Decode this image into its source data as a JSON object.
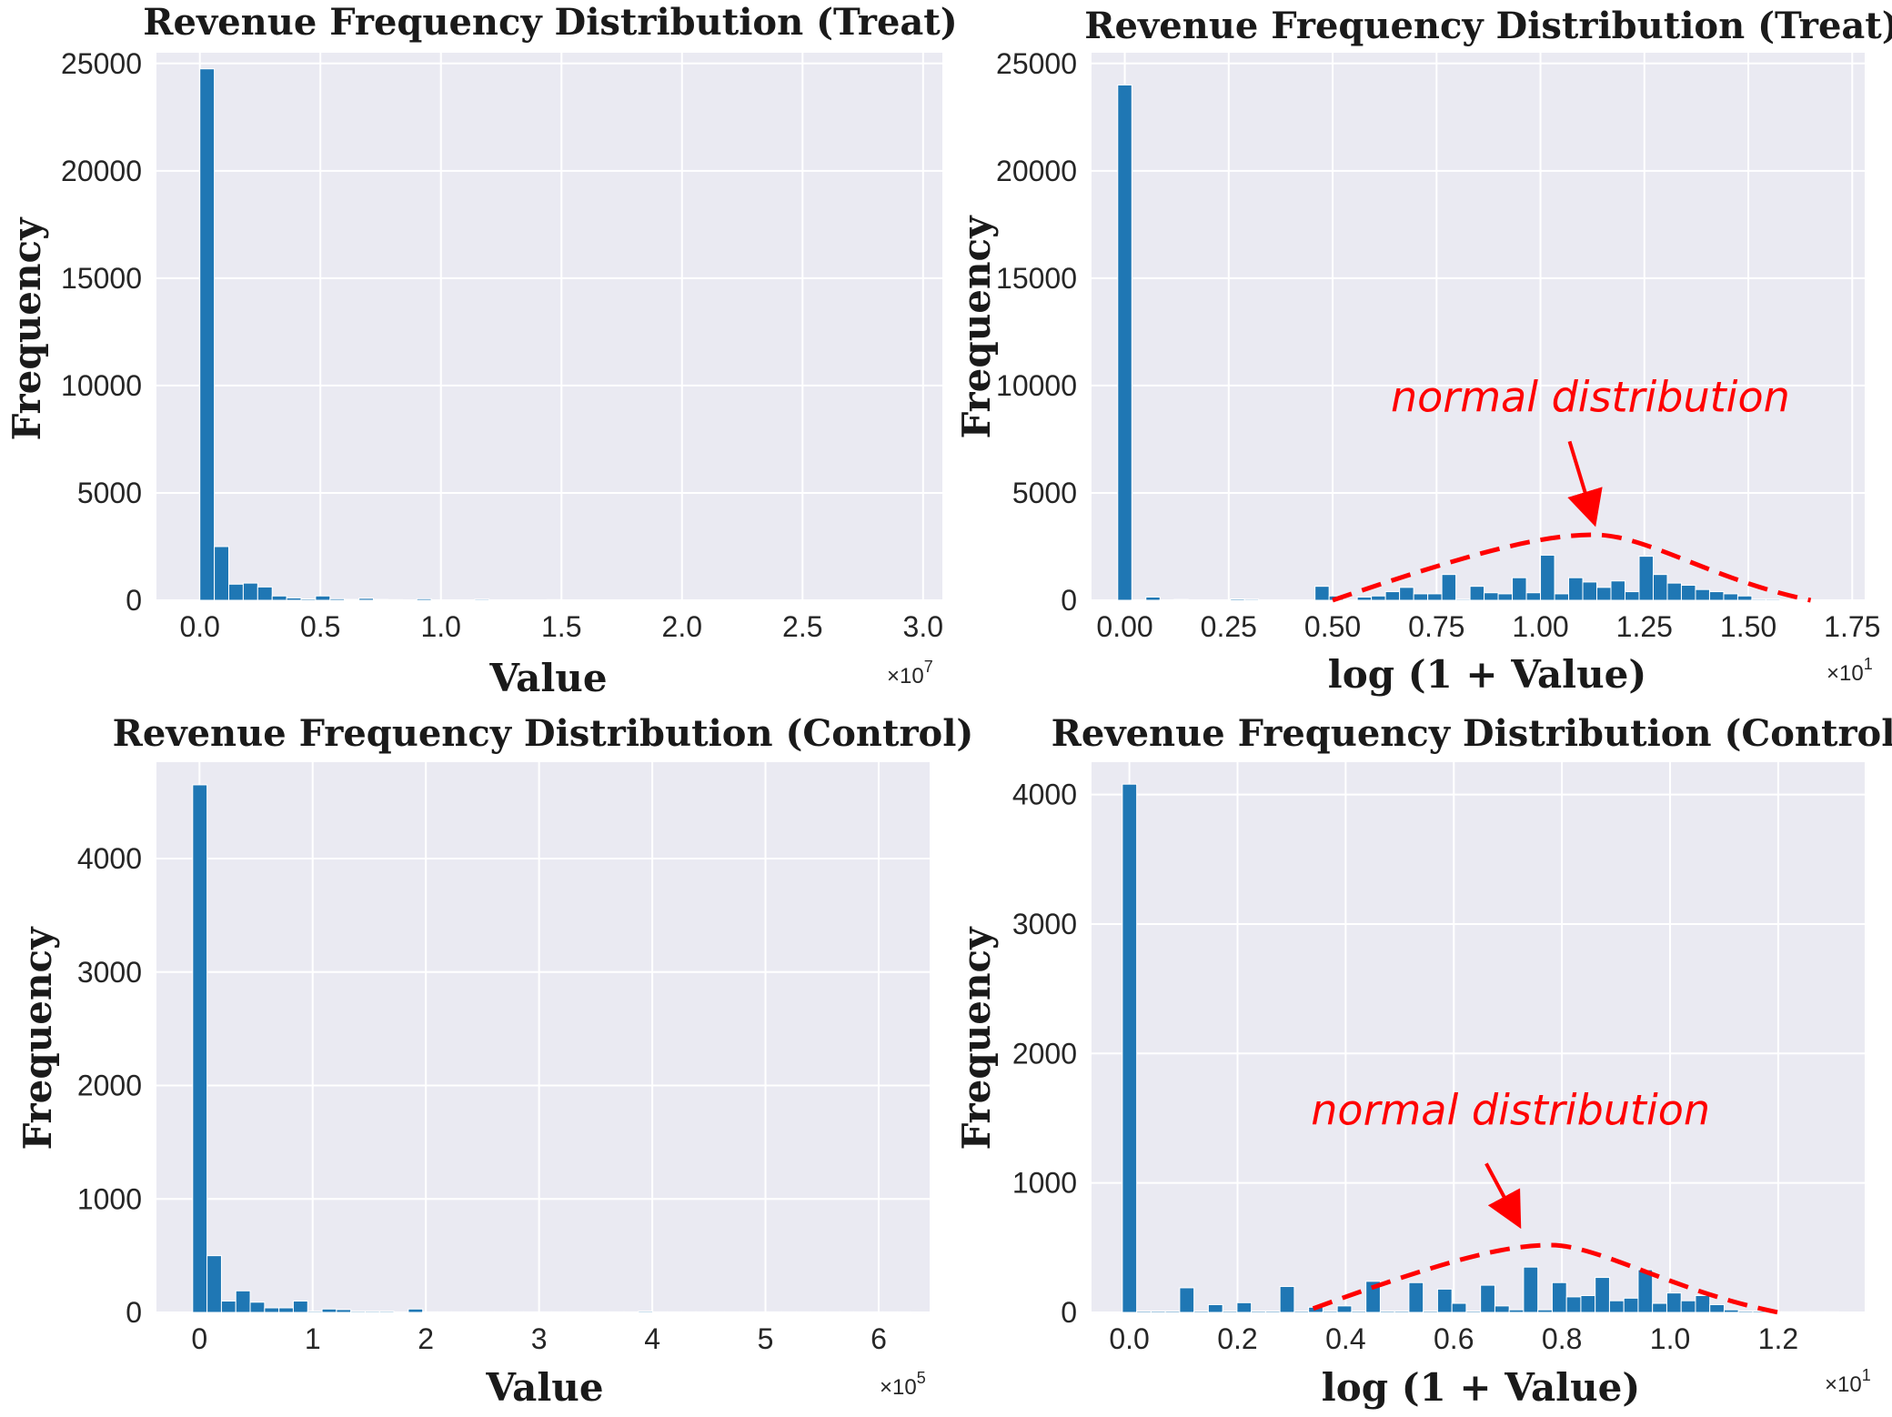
{
  "colors": {
    "bar": "#1f77b4",
    "panel_bg": "#eaeaf2",
    "grid": "#ffffff",
    "annotation": "#ff0000"
  },
  "chart_data": [
    {
      "type": "bar",
      "title": "Revenue Frequency Distribution (Treat)",
      "xlabel": "Value",
      "ylabel": "Frequency",
      "x_multiplier": "×10",
      "x_multiplier_exp": "7",
      "xlim": [
        -0.18,
        3.08
      ],
      "ylim": [
        0,
        25500
      ],
      "xticks": [
        0.0,
        0.5,
        1.0,
        1.5,
        2.0,
        2.5,
        3.0
      ],
      "xtick_labels": [
        "0.0",
        "0.5",
        "1.0",
        "1.5",
        "2.0",
        "2.5",
        "3.0"
      ],
      "yticks": [
        0,
        5000,
        10000,
        15000,
        20000,
        25000
      ],
      "ytick_labels": [
        "0",
        "5000",
        "10000",
        "15000",
        "20000",
        "25000"
      ],
      "bin_start": 0.0,
      "bin_width": 0.06,
      "values": [
        24750,
        2500,
        750,
        800,
        620,
        200,
        110,
        60,
        200,
        70,
        40,
        90,
        40,
        30,
        20,
        70,
        20,
        15,
        15,
        50,
        10,
        10,
        10,
        10,
        30,
        10,
        10,
        5,
        5,
        5,
        5,
        5,
        5,
        5,
        5,
        5,
        5,
        5,
        5,
        5,
        10,
        5,
        5,
        5,
        5,
        5,
        5,
        5,
        5,
        5
      ]
    },
    {
      "type": "bar",
      "title": "Revenue Frequency Distribution (Treat)",
      "xlabel": "log (1 + Value)",
      "ylabel": "Frequency",
      "x_multiplier": "×10",
      "x_multiplier_exp": "1",
      "xlim": [
        -0.08,
        1.78
      ],
      "ylim": [
        0,
        25500
      ],
      "xticks": [
        0.0,
        0.25,
        0.5,
        0.75,
        1.0,
        1.25,
        1.5,
        1.75
      ],
      "xtick_labels": [
        "0.00",
        "0.25",
        "0.50",
        "0.75",
        "1.00",
        "1.25",
        "1.50",
        "1.75"
      ],
      "yticks": [
        0,
        5000,
        10000,
        15000,
        20000,
        25000
      ],
      "ytick_labels": [
        "0",
        "5000",
        "10000",
        "15000",
        "20000",
        "25000"
      ],
      "bin_start": -0.017,
      "bin_width": 0.0339,
      "values": [
        24000,
        20,
        150,
        20,
        40,
        20,
        20,
        20,
        60,
        50,
        20,
        20,
        20,
        20,
        650,
        200,
        20,
        150,
        200,
        400,
        600,
        300,
        300,
        1200,
        50,
        650,
        350,
        300,
        1050,
        350,
        2100,
        300,
        1050,
        850,
        600,
        900,
        400,
        2050,
        1200,
        800,
        700,
        500,
        400,
        300,
        200,
        50,
        50,
        20,
        20,
        20
      ],
      "curve": {
        "x": [
          0.5,
          1.13,
          1.65
        ],
        "y": [
          0,
          3050,
          0
        ],
        "dash": "dashed"
      },
      "annotation": {
        "text": "normal distribution",
        "text_x": 1.12,
        "text_y": 8800,
        "arrow_from": [
          1.07,
          7400
        ],
        "arrow_to": [
          1.125,
          3900
        ]
      }
    },
    {
      "type": "bar",
      "title": "Revenue Frequency Distribution (Control)",
      "xlabel": "Value",
      "ylabel": "Frequency",
      "x_multiplier": "×10",
      "x_multiplier_exp": "5",
      "xlim": [
        -0.38,
        6.45
      ],
      "ylim": [
        0,
        4850
      ],
      "xticks": [
        0,
        1,
        2,
        3,
        4,
        5,
        6
      ],
      "xtick_labels": [
        "0",
        "1",
        "2",
        "3",
        "4",
        "5",
        "6"
      ],
      "yticks": [
        0,
        1000,
        2000,
        3000,
        4000
      ],
      "ytick_labels": [
        "0",
        "1000",
        "2000",
        "3000",
        "4000"
      ],
      "bin_start": -0.06,
      "bin_width": 0.127,
      "values": [
        4650,
        500,
        100,
        190,
        90,
        40,
        40,
        100,
        10,
        30,
        25,
        10,
        10,
        10,
        5,
        30,
        5,
        5,
        5,
        5,
        5,
        5,
        5,
        5,
        5,
        5,
        5,
        5,
        5,
        5,
        5,
        10,
        5,
        5,
        5,
        5,
        5,
        5,
        5,
        5,
        5,
        5,
        5,
        5,
        5,
        5,
        5,
        5,
        5,
        5
      ]
    },
    {
      "type": "bar",
      "title": "Revenue Frequency Distribution (Control)",
      "xlabel": "log (1 + Value)",
      "ylabel": "Frequency",
      "x_multiplier": "×10",
      "x_multiplier_exp": "1",
      "xlim": [
        -0.07,
        1.36
      ],
      "ylim": [
        0,
        4250
      ],
      "xticks": [
        0.0,
        0.2,
        0.4,
        0.6,
        0.8,
        1.0,
        1.2
      ],
      "xtick_labels": [
        "0.0",
        "0.2",
        "0.4",
        "0.6",
        "0.8",
        "1.0",
        "1.2"
      ],
      "yticks": [
        0,
        1000,
        2000,
        3000,
        4000
      ],
      "ytick_labels": [
        "0",
        "1000",
        "2000",
        "3000",
        "4000"
      ],
      "bin_start": -0.013,
      "bin_width": 0.0265,
      "values": [
        4080,
        10,
        10,
        10,
        190,
        10,
        60,
        10,
        75,
        10,
        10,
        200,
        10,
        40,
        10,
        50,
        10,
        240,
        10,
        10,
        230,
        10,
        180,
        70,
        10,
        210,
        50,
        20,
        350,
        20,
        230,
        120,
        130,
        270,
        90,
        110,
        330,
        70,
        150,
        90,
        130,
        60,
        20,
        10,
        10,
        5,
        5,
        5,
        5,
        5
      ],
      "curve": {
        "x": [
          0.34,
          0.78,
          1.2
        ],
        "y": [
          30,
          520,
          0
        ],
        "dash": "dashed"
      },
      "annotation": {
        "text": "normal distribution",
        "text_x": 0.705,
        "text_y": 1450,
        "arrow_from": [
          0.66,
          1150
        ],
        "arrow_to": [
          0.715,
          720
        ]
      }
    }
  ]
}
